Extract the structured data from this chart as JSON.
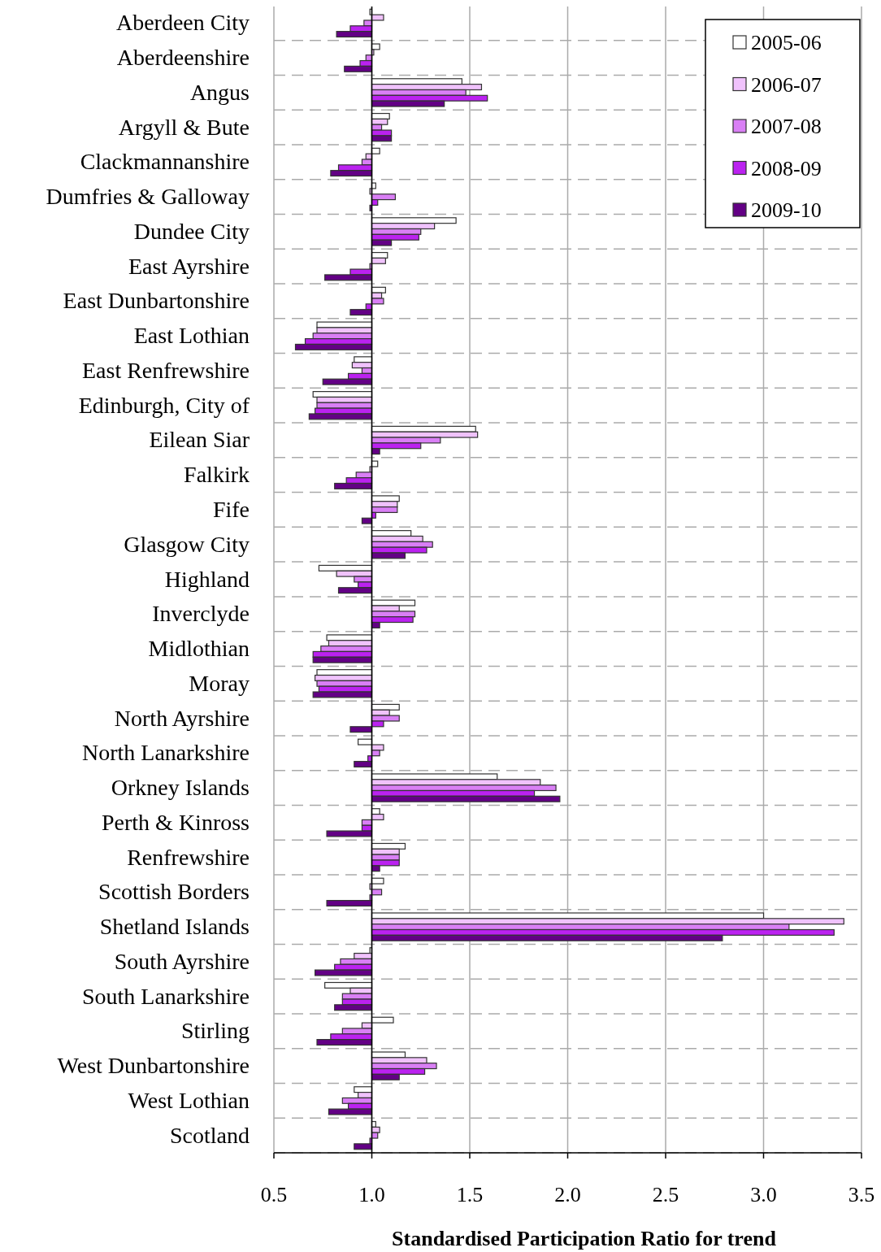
{
  "chart_data": {
    "type": "bar",
    "orientation": "horizontal",
    "xlabel": "Standardised Participation Ratio for trend",
    "categories": [
      "Aberdeen City",
      "Aberdeenshire",
      "Angus",
      "Argyll & Bute",
      "Clackmannanshire",
      "Dumfries & Galloway",
      "Dundee City",
      "East Ayrshire",
      "East Dunbartonshire",
      "East Lothian",
      "East Renfrewshire",
      "Edinburgh, City of",
      "Eilean Siar",
      "Falkirk",
      "Fife",
      "Glasgow City",
      "Highland",
      "Inverclyde",
      "Midlothian",
      "Moray",
      "North Ayrshire",
      "North Lanarkshire",
      "Orkney Islands",
      "Perth & Kinross",
      "Renfrewshire",
      "Scottish Borders",
      "Shetland Islands",
      "South Ayrshire",
      "South Lanarkshire",
      "Stirling",
      "West Dunbartonshire",
      "West Lothian",
      "Scotland"
    ],
    "series": [
      {
        "name": "2005-06",
        "color": "#ffffff",
        "base": [
          1,
          1,
          1,
          1,
          1,
          1,
          1,
          1,
          1,
          1,
          1,
          1,
          1,
          1,
          1,
          1,
          1,
          1,
          1,
          1,
          1,
          1,
          1,
          1,
          1,
          1,
          1,
          1,
          1,
          1,
          1,
          1,
          1
        ],
        "values": [
          -0.01,
          0.04,
          0.46,
          0.09,
          0.04,
          0.02,
          0.43,
          0.08,
          0.07,
          -0.28,
          -0.09,
          -0.3,
          0.53,
          0.03,
          0.14,
          0.2,
          -0.27,
          0.22,
          -0.23,
          -0.28,
          0.14,
          -0.07,
          0.64,
          0.04,
          0.17,
          0.06,
          2.0,
          -0.01,
          -0.24,
          0.11,
          0.17,
          -0.09,
          0.02
        ]
      },
      {
        "name": "2006-07",
        "color": "#f0c2fc",
        "base": [
          1,
          1,
          1,
          1,
          1,
          1,
          1,
          1,
          1,
          1,
          1,
          1,
          1,
          1,
          1,
          1,
          1,
          1,
          1,
          1,
          1,
          1,
          1,
          1,
          1,
          1,
          1,
          1,
          1,
          1,
          1,
          1,
          1
        ],
        "values": [
          0.06,
          0.01,
          0.56,
          0.08,
          -0.03,
          -0.01,
          0.32,
          0.07,
          0.05,
          -0.28,
          -0.1,
          -0.28,
          0.54,
          -0.01,
          0.13,
          0.26,
          -0.18,
          0.14,
          -0.22,
          -0.29,
          0.09,
          0.06,
          0.86,
          0.06,
          0.14,
          -0.01,
          2.41,
          -0.09,
          -0.11,
          -0.05,
          0.28,
          -0.07,
          0.04
        ]
      },
      {
        "name": "2007-08",
        "color": "#d97ff5",
        "base": [
          1,
          1,
          1,
          1,
          1,
          1,
          1,
          1,
          1,
          1,
          1,
          1,
          1,
          1,
          1,
          1,
          1,
          1,
          1,
          1,
          1,
          1,
          1,
          1,
          1,
          1,
          1,
          1,
          1,
          1,
          1,
          1,
          1
        ],
        "values": [
          -0.04,
          -0.03,
          0.48,
          0.05,
          -0.05,
          0.12,
          0.25,
          -0.01,
          0.06,
          -0.3,
          -0.05,
          -0.28,
          0.35,
          -0.08,
          0.13,
          0.31,
          -0.09,
          0.22,
          -0.26,
          -0.28,
          0.14,
          0.04,
          0.94,
          -0.05,
          0.14,
          0.05,
          2.13,
          -0.16,
          -0.15,
          -0.15,
          0.33,
          -0.15,
          0.03
        ]
      },
      {
        "name": "2008-09",
        "color": "#bb22f0",
        "base": [
          1,
          1,
          1,
          1,
          1,
          1,
          1,
          1,
          1,
          1,
          1,
          1,
          1,
          1,
          1,
          1,
          1,
          1,
          1,
          1,
          1,
          1,
          1,
          1,
          1,
          1,
          1,
          1,
          1,
          1,
          1,
          1,
          1
        ],
        "values": [
          -0.11,
          -0.06,
          0.59,
          0.1,
          -0.17,
          0.03,
          0.24,
          -0.11,
          -0.03,
          -0.34,
          -0.12,
          -0.29,
          0.25,
          -0.13,
          0.02,
          0.28,
          -0.07,
          0.21,
          -0.3,
          -0.27,
          0.06,
          -0.02,
          0.83,
          -0.05,
          0.14,
          -0.01,
          2.36,
          -0.19,
          -0.15,
          -0.21,
          0.27,
          -0.12,
          -0.01
        ]
      },
      {
        "name": "2009-10",
        "color": "#630085",
        "base": [
          1,
          1,
          1,
          1,
          1,
          1,
          1,
          1,
          1,
          1,
          1,
          1,
          1,
          1,
          1,
          1,
          1,
          1,
          1,
          1,
          1,
          1,
          1,
          1,
          1,
          1,
          1,
          1,
          1,
          1,
          1,
          1,
          1
        ],
        "values": [
          -0.18,
          -0.14,
          0.37,
          0.1,
          -0.21,
          -0.01,
          0.1,
          -0.24,
          -0.11,
          -0.39,
          -0.25,
          -0.32,
          0.04,
          -0.19,
          -0.05,
          0.17,
          -0.17,
          0.04,
          -0.3,
          -0.3,
          -0.11,
          -0.09,
          0.96,
          -0.23,
          0.04,
          -0.23,
          1.79,
          -0.29,
          -0.19,
          -0.28,
          0.14,
          -0.22,
          -0.09
        ]
      }
    ],
    "xlim": [
      0.5,
      3.5
    ],
    "xticks": [
      0.5,
      {
        "value": 1,
        "label": "1.0"
      },
      1.5,
      {
        "value": 2,
        "label": "2.0"
      },
      2.5,
      {
        "value": 3,
        "label": "3.0"
      },
      3.5
    ],
    "ref_lines": [
      {
        "axis": "x",
        "value": 1,
        "color": "#000000"
      }
    ],
    "grid": true,
    "legend": "top right"
  }
}
